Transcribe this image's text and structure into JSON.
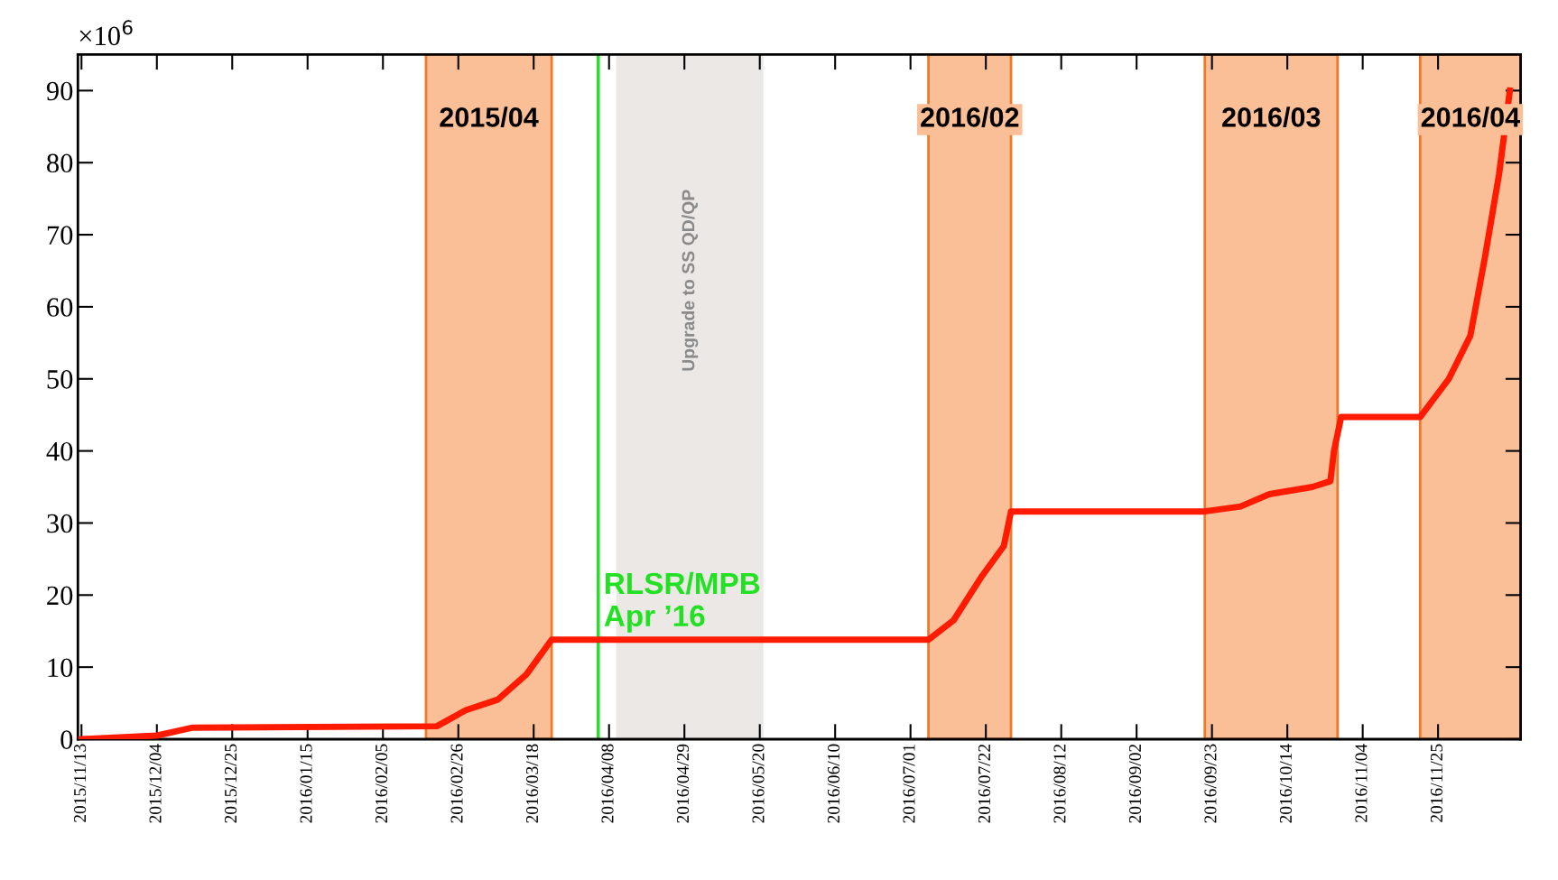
{
  "chart_data": {
    "type": "line",
    "x": [
      "2015-11-13",
      "2015-12-04",
      "2015-12-14",
      "2016-02-20",
      "2016-02-28",
      "2016-03-08",
      "2016-03-16",
      "2016-03-23",
      "2016-07-06",
      "2016-07-13",
      "2016-07-21",
      "2016-07-27",
      "2016-07-29",
      "2016-09-21",
      "2016-10-01",
      "2016-10-09",
      "2016-10-21",
      "2016-10-26",
      "2016-10-27",
      "2016-10-29",
      "2016-11-20",
      "2016-11-28",
      "2016-12-04",
      "2016-12-08",
      "2016-12-12",
      "2016-12-15"
    ],
    "series": [
      {
        "color": "#ff1a00",
        "values": [
          0,
          0.5,
          1.6,
          1.8,
          4,
          5.5,
          9,
          13.8,
          13.8,
          16.5,
          22.7,
          26.8,
          31.6,
          31.6,
          32.3,
          34,
          35,
          35.8,
          40,
          44.7,
          44.7,
          50,
          56,
          66.7,
          78.4,
          90
        ]
      }
    ],
    "xlim": [
      "2015-11-12",
      "2016-12-18"
    ],
    "xticks": [
      {
        "value": "2015-11-13",
        "label": "2015/11/13"
      },
      {
        "value": "2015-12-04",
        "label": "2015/12/04"
      },
      {
        "value": "2015-12-25",
        "label": "2015/12/25"
      },
      {
        "value": "2016-01-15",
        "label": "2016/01/15"
      },
      {
        "value": "2016-02-05",
        "label": "2016/02/05"
      },
      {
        "value": "2016-02-26",
        "label": "2016/02/26"
      },
      {
        "value": "2016-03-18",
        "label": "2016/03/18"
      },
      {
        "value": "2016-04-08",
        "label": "2016/04/08"
      },
      {
        "value": "2016-04-29",
        "label": "2016/04/29"
      },
      {
        "value": "2016-05-20",
        "label": "2016/05/20"
      },
      {
        "value": "2016-06-10",
        "label": "2016/06/10"
      },
      {
        "value": "2016-07-01",
        "label": "2016/07/01"
      },
      {
        "value": "2016-07-22",
        "label": "2016/07/22"
      },
      {
        "value": "2016-08-12",
        "label": "2016/08/12"
      },
      {
        "value": "2016-09-02",
        "label": "2016/09/02"
      },
      {
        "value": "2016-09-23",
        "label": "2016/09/23"
      },
      {
        "value": "2016-10-14",
        "label": "2016/10/14"
      },
      {
        "value": "2016-11-04",
        "label": "2016/11/04"
      },
      {
        "value": "2016-11-25",
        "label": "2016/11/25"
      }
    ],
    "ylim": [
      0,
      95
    ],
    "yticks": [
      0,
      10,
      20,
      30,
      40,
      50,
      60,
      70,
      80,
      90
    ],
    "bands": [
      {
        "axis": "x",
        "from": "2016-02-17",
        "to": "2016-03-23",
        "label": "2015/04",
        "color": "#fbbf98"
      },
      {
        "axis": "x",
        "from": "2016-04-10",
        "to": "2016-05-21",
        "label": "Upgrade to SS QD/QP",
        "color": "#ebe8e5"
      },
      {
        "axis": "x",
        "from": "2016-07-06",
        "to": "2016-07-29",
        "label": "2016/02",
        "color": "#fbbf98"
      },
      {
        "axis": "x",
        "from": "2016-09-21",
        "to": "2016-10-28",
        "label": "2016/03",
        "color": "#fbbf98"
      },
      {
        "axis": "x",
        "from": "2016-11-20",
        "to": "2016-12-18",
        "label": "2016/04",
        "color": "#fbbf98"
      }
    ],
    "ref_lines": [
      {
        "axis": "x",
        "value": "2016-04-05",
        "label": "RLSR/MPB\nApr ’16",
        "color": "#22e022"
      }
    ],
    "annotations": [
      "×10$^{6}$"
    ],
    "grid": false,
    "legend": false,
    "marker": "none",
    "line_style": "solid"
  }
}
